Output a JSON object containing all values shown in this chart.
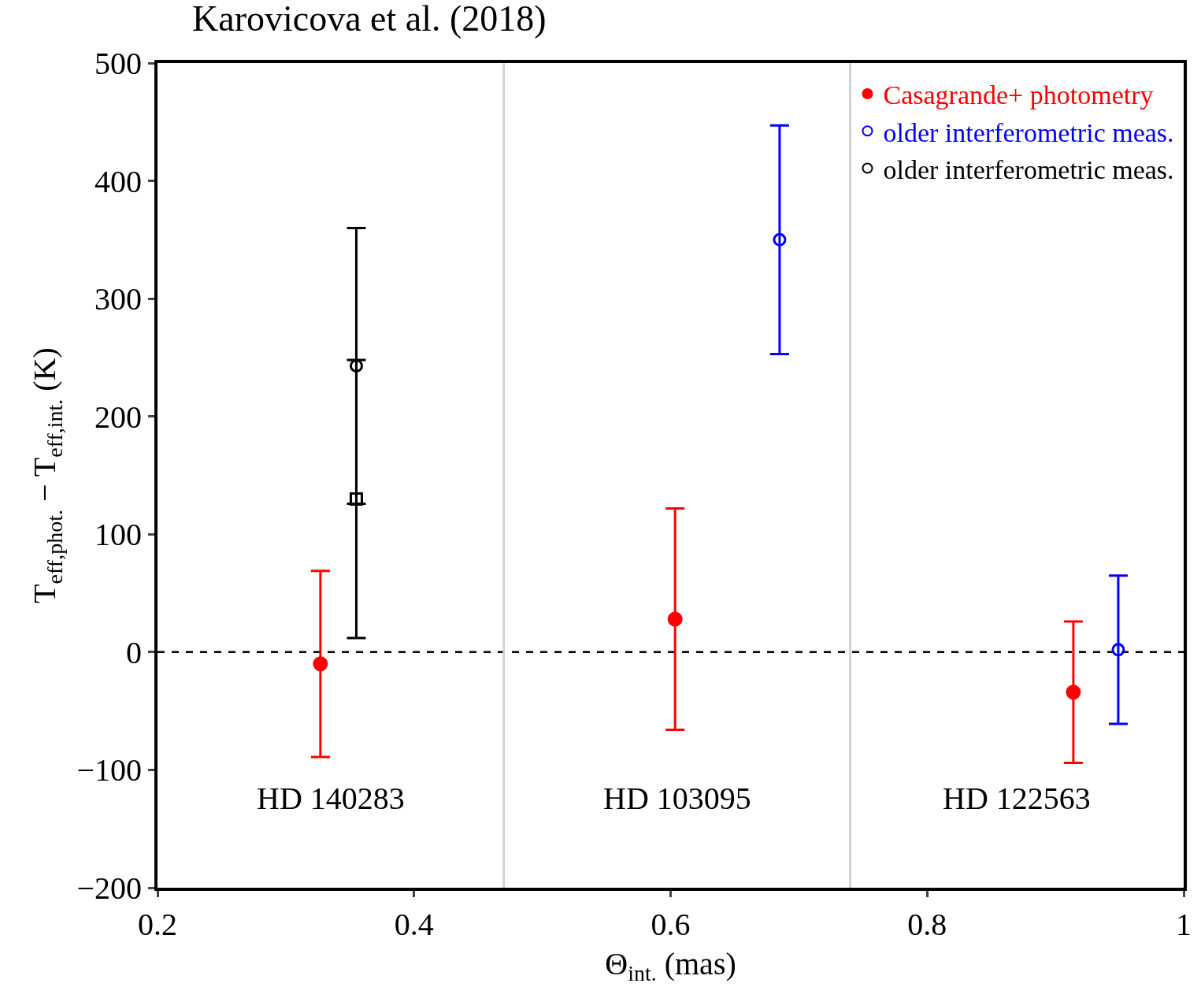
{
  "chart_data": {
    "type": "scatter",
    "title": "Karovicova et al. (2018)",
    "xlabel": "Θ$_{int.}$ (mas)",
    "ylabel": "T$_{eff,phot.}$ − T$_{eff,int.}$ (K)",
    "xlim": [
      0.2,
      1.0
    ],
    "xticks": [
      0.2,
      0.4,
      0.6,
      0.8,
      1
    ],
    "ylim": [
      -200,
      500
    ],
    "yticks": [
      -200,
      -100,
      0,
      100,
      200,
      300,
      400,
      500
    ],
    "grid": false,
    "legend": "top right",
    "series": [
      {
        "name": "Casagrande+ photometry",
        "color": "#ff0000",
        "marker": "circle",
        "x": [
          0.327,
          0.6035,
          0.914
        ],
        "values": [
          -10,
          28,
          -34
        ],
        "errors": [
          79,
          94,
          60
        ]
      },
      {
        "name": "older interferometric meas.",
        "color": "#0000ff",
        "marker": "circle-open",
        "x": [
          0.685,
          0.949
        ],
        "values": [
          350,
          2
        ],
        "errors": [
          97,
          63
        ]
      },
      {
        "name": "older interferometric meas.",
        "color": "#000000",
        "marker": "circle-open",
        "x": [
          0.355
        ],
        "values": [
          243
        ],
        "errors": [
          117
        ]
      },
      {
        "color": "#000000",
        "marker": "square-open",
        "x": [
          0.355
        ],
        "values": [
          130
        ],
        "errors": [
          118
        ]
      }
    ],
    "ref_lines": [
      {
        "axis": "y",
        "value": 0,
        "color": "#000000",
        "line_style": "dashed"
      },
      {
        "axis": "x",
        "value": 0.47,
        "color": "#d3d3d3",
        "line_style": "solid"
      },
      {
        "axis": "x",
        "value": 0.74,
        "color": "#d3d3d3",
        "line_style": "solid"
      }
    ],
    "annotations": [
      "HD 140283",
      "HD 103095",
      "HD 122563"
    ]
  }
}
